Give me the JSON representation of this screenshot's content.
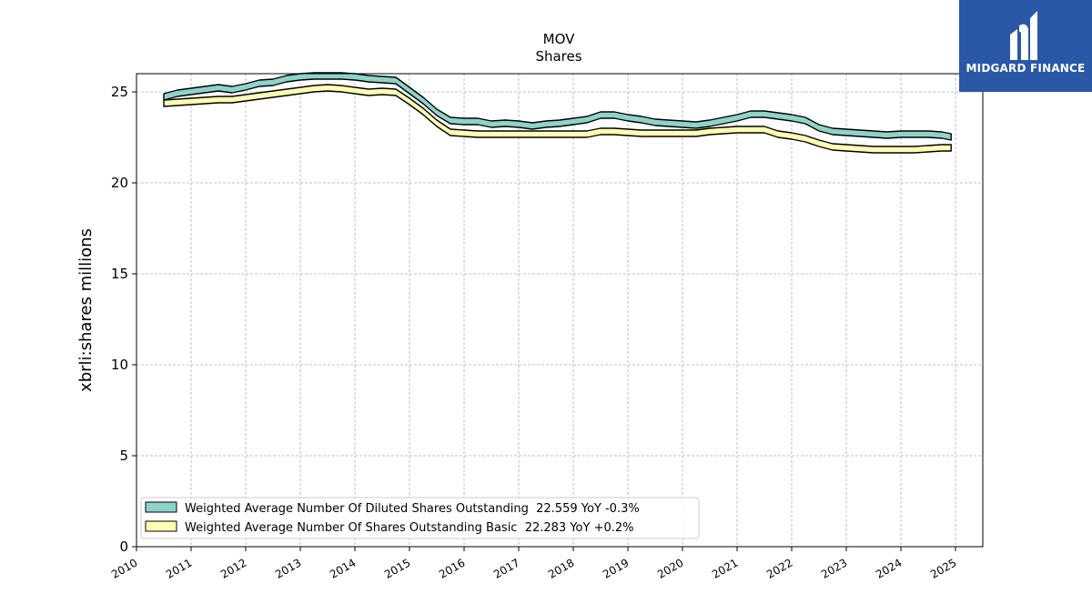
{
  "chart_data": {
    "type": "area",
    "title": "MOV",
    "subtitle": "Shares",
    "xlabel": "",
    "ylabel": "xbrli:shares millions",
    "xlim": [
      2010,
      2025.5
    ],
    "ylim": [
      0,
      26
    ],
    "x_ticks": [
      "2010",
      "2011",
      "2012",
      "2013",
      "2014",
      "2015",
      "2016",
      "2017",
      "2018",
      "2019",
      "2020",
      "2021",
      "2022",
      "2023",
      "2024",
      "2025"
    ],
    "y_ticks": [
      "0",
      "5",
      "10",
      "15",
      "20",
      "25"
    ],
    "grid": true,
    "legend_position": "lower-left",
    "x": [
      2010.5,
      2010.75,
      2011.0,
      2011.25,
      2011.5,
      2011.75,
      2012.0,
      2012.25,
      2012.5,
      2012.75,
      2013.0,
      2013.25,
      2013.5,
      2013.75,
      2014.0,
      2014.25,
      2014.5,
      2014.75,
      2015.0,
      2015.25,
      2015.5,
      2015.75,
      2016.0,
      2016.25,
      2016.5,
      2016.75,
      2017.0,
      2017.25,
      2017.5,
      2017.75,
      2018.0,
      2018.25,
      2018.5,
      2018.75,
      2019.0,
      2019.25,
      2019.5,
      2019.75,
      2020.0,
      2020.25,
      2020.5,
      2020.75,
      2021.0,
      2021.25,
      2021.5,
      2021.75,
      2022.0,
      2022.25,
      2022.5,
      2022.75,
      2023.0,
      2023.25,
      2023.5,
      2023.75,
      2024.0,
      2024.25,
      2024.5,
      2024.75,
      2024.92
    ],
    "series": [
      {
        "name": "Weighted Average Number Of Diluted Shares Outstanding",
        "legend_label": "Weighted Average Number Of Diluted Shares Outstanding  22.559 YoY -0.3%",
        "color": "#8dd3c7",
        "values": [
          24.9,
          25.1,
          25.2,
          25.3,
          25.4,
          25.3,
          25.45,
          25.65,
          25.7,
          25.9,
          26.0,
          26.05,
          26.05,
          26.05,
          26.0,
          25.9,
          25.85,
          25.8,
          25.25,
          24.7,
          24.05,
          23.6,
          23.55,
          23.55,
          23.4,
          23.45,
          23.4,
          23.3,
          23.4,
          23.45,
          23.55,
          23.65,
          23.9,
          23.9,
          23.75,
          23.65,
          23.5,
          23.45,
          23.4,
          23.35,
          23.45,
          23.6,
          23.75,
          23.95,
          23.95,
          23.85,
          23.75,
          23.6,
          23.2,
          23.0,
          22.95,
          22.9,
          22.85,
          22.8,
          22.85,
          22.85,
          22.85,
          22.8,
          22.7
        ]
      },
      {
        "name": "Weighted Average Number Of Shares Outstanding Basic",
        "legend_label": "Weighted Average Number Of Shares Outstanding Basic  22.283 YoY +0.2%",
        "color": "#ffffb3",
        "values": [
          24.55,
          24.6,
          24.65,
          24.7,
          24.75,
          24.75,
          24.85,
          24.95,
          25.05,
          25.15,
          25.25,
          25.35,
          25.4,
          25.35,
          25.25,
          25.15,
          25.2,
          25.15,
          24.65,
          24.1,
          23.45,
          22.95,
          22.9,
          22.85,
          22.85,
          22.85,
          22.85,
          22.85,
          22.85,
          22.85,
          22.85,
          22.85,
          23.0,
          23.0,
          22.95,
          22.9,
          22.9,
          22.9,
          22.9,
          22.9,
          23.0,
          23.05,
          23.1,
          23.1,
          23.1,
          22.85,
          22.75,
          22.6,
          22.35,
          22.15,
          22.1,
          22.05,
          22.0,
          22.0,
          22.0,
          22.0,
          22.05,
          22.1,
          22.1
        ]
      }
    ]
  },
  "logo": {
    "text": "MIDGARD FINANCE",
    "background": "#2b57a7"
  }
}
